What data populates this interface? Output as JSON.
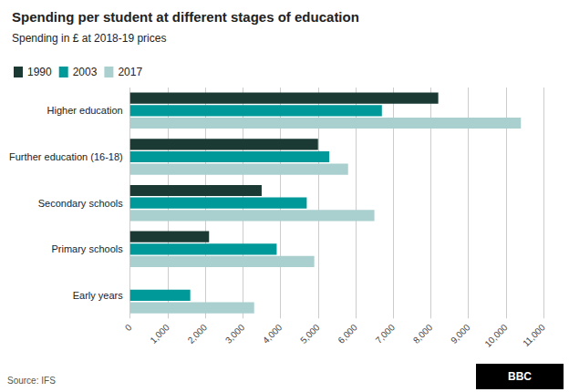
{
  "chart_data": {
    "type": "bar",
    "orientation": "horizontal",
    "title": "Spending per student at different stages of education",
    "subtitle": "Spending in £ at 2018-19 prices",
    "categories": [
      "Early years",
      "Primary schools",
      "Secondary schools",
      "Further education (16-18)",
      "Higher education"
    ],
    "series": [
      {
        "name": "1990",
        "color": "#1a3a33",
        "values": [
          0,
          2100,
          3500,
          5000,
          8200
        ]
      },
      {
        "name": "2003",
        "color": "#009999",
        "values": [
          1600,
          3900,
          4700,
          5300,
          6700
        ]
      },
      {
        "name": "2017",
        "color": "#aacfcf",
        "values": [
          3300,
          4900,
          6500,
          5800,
          10400
        ]
      }
    ],
    "xlim": [
      0,
      11000
    ],
    "xticks": [
      0,
      {
        "value": 1000,
        "label": "1,000"
      },
      {
        "value": 2000,
        "label": "2,000"
      },
      {
        "value": 3000,
        "label": "3,000"
      },
      {
        "value": 4000,
        "label": "4,000"
      },
      {
        "value": 5000,
        "label": "5,000"
      },
      {
        "value": 6000,
        "label": "6,000"
      },
      {
        "value": 7000,
        "label": "7,000"
      },
      {
        "value": 8000,
        "label": "8,000"
      },
      {
        "value": 9000,
        "label": "9,000"
      },
      {
        "value": 10000,
        "label": "10,000"
      },
      {
        "value": 11000,
        "label": "11,000"
      }
    ],
    "grid": true,
    "legend": "top left",
    "annotations": [
      "Source: IFS",
      "BBC"
    ]
  }
}
